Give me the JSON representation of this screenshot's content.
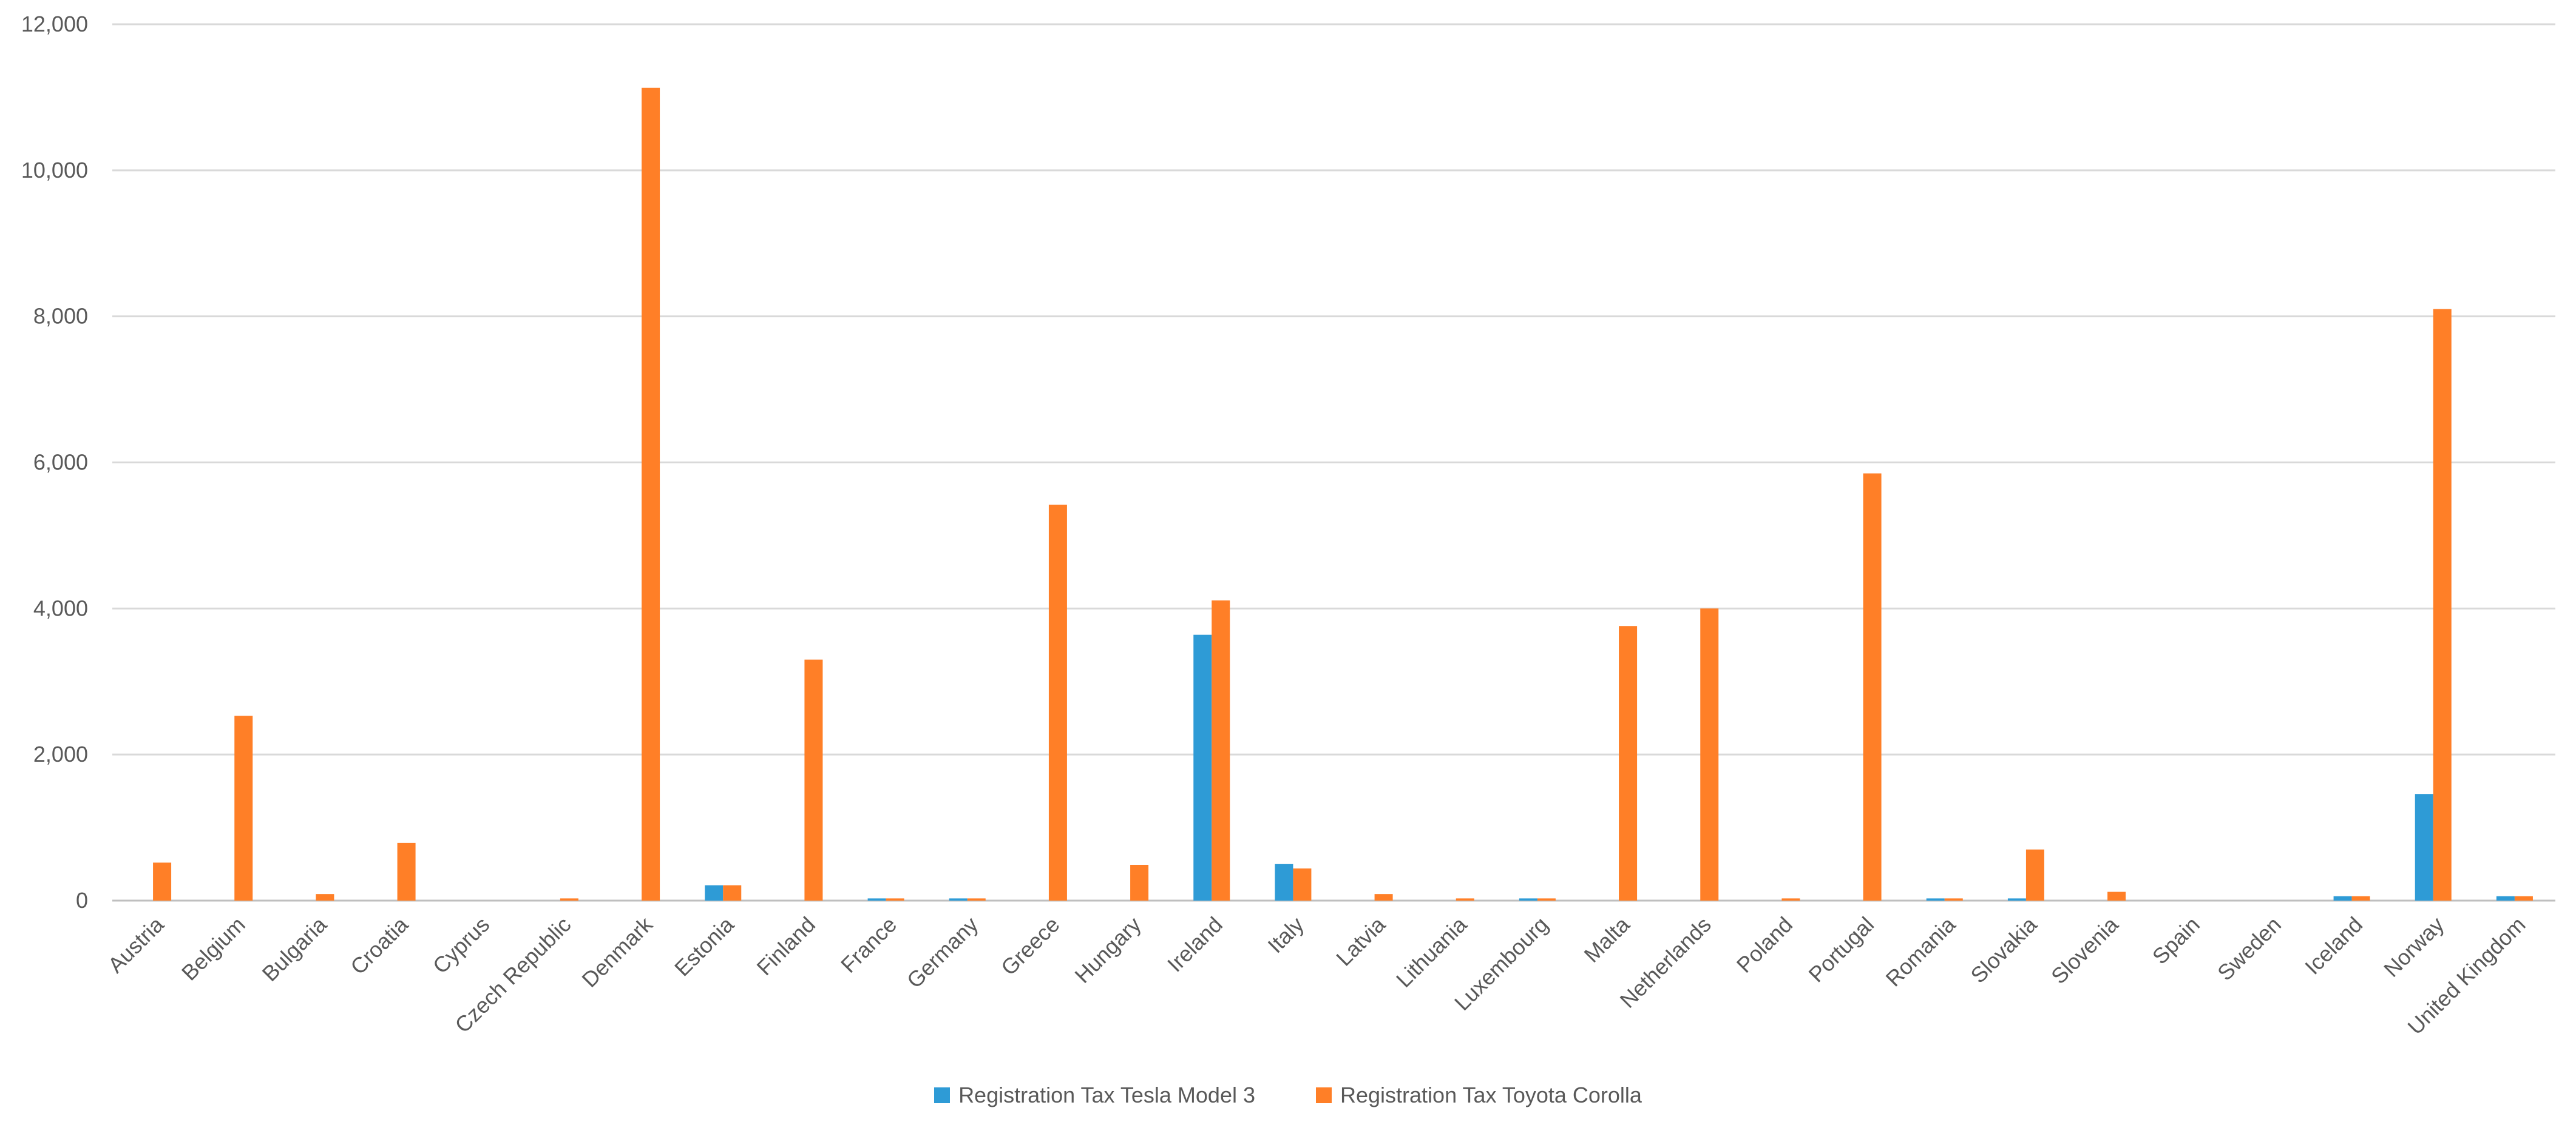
{
  "chart_data": {
    "type": "bar",
    "title": "",
    "xlabel": "",
    "ylabel": "",
    "ylim": [
      0,
      12000
    ],
    "y_ticks": [
      0,
      2000,
      4000,
      6000,
      8000,
      10000,
      12000
    ],
    "y_tick_labels": [
      "0",
      "2,000",
      "4,000",
      "6,000",
      "8,000",
      "10,000",
      "12,000"
    ],
    "grid": true,
    "legend_position": "bottom",
    "categories": [
      "Austria",
      "Belgium",
      "Bulgaria",
      "Croatia",
      "Cyprus",
      "Czech Republic",
      "Denmark",
      "Estonia",
      "Finland",
      "France",
      "Germany",
      "Greece",
      "Hungary",
      "Ireland",
      "Italy",
      "Latvia",
      "Lithuania",
      "Luxembourg",
      "Malta",
      "Netherlands",
      "Poland",
      "Portugal",
      "Romania",
      "Slovakia",
      "Slovenia",
      "Spain",
      "Sweden",
      "Iceland",
      "Norway",
      "United Kingdom"
    ],
    "series": [
      {
        "name": "Registration Tax Tesla Model 3",
        "color": "#2E9BD6",
        "values": [
          0,
          0,
          0,
          0,
          0,
          0,
          0,
          210,
          0,
          30,
          30,
          0,
          0,
          3640,
          500,
          0,
          0,
          30,
          0,
          0,
          0,
          0,
          30,
          30,
          0,
          0,
          0,
          60,
          1460,
          60
        ]
      },
      {
        "name": "Registration Tax Toyota Corolla",
        "color": "#FF7F27",
        "values": [
          520,
          2530,
          90,
          790,
          0,
          30,
          11130,
          210,
          3300,
          30,
          30,
          5420,
          490,
          4110,
          440,
          90,
          30,
          30,
          3760,
          4000,
          30,
          5850,
          30,
          700,
          120,
          0,
          0,
          60,
          8100,
          60
        ]
      }
    ]
  }
}
